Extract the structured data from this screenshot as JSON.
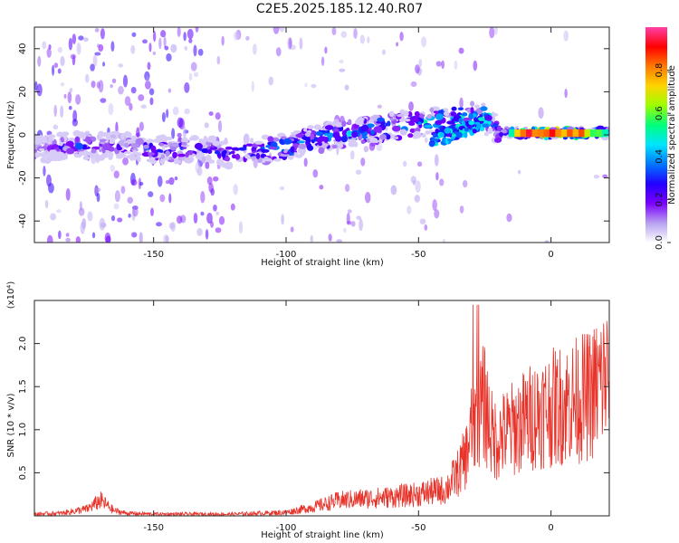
{
  "figure_title": "C2E5.2025.185.12.40.R07",
  "chart_data": [
    {
      "type": "heatmap",
      "title": "",
      "xlabel": "Height of straight line (km)",
      "ylabel": "Frequency (Hz)",
      "xlim": [
        -195,
        22
      ],
      "ylim": [
        -50,
        50
      ],
      "x_ticks": [
        -150,
        -100,
        -50,
        0
      ],
      "y_ticks": [
        -40,
        -20,
        0,
        20,
        40
      ],
      "colorbar": {
        "label": "Normalized spectral amplitude",
        "range": [
          0,
          1
        ],
        "ticks": [
          0.0,
          0.2,
          0.4,
          0.6,
          0.8
        ],
        "colormap": [
          "#ffffff",
          "#b7a0f0",
          "#7b00ff",
          "#2200ff",
          "#0078ff",
          "#00e5ff",
          "#00ff7a",
          "#9cff00",
          "#ffd400",
          "#ff7a00",
          "#ff0000",
          "#ff3fa6"
        ]
      },
      "ridge": {
        "x": [
          -190,
          -180,
          -170,
          -160,
          -150,
          -140,
          -130,
          -120,
          -110,
          -100,
          -90,
          -80,
          -70,
          -60,
          -50,
          -40,
          -30,
          -25,
          -20,
          -10,
          0,
          10,
          20
        ],
        "freq_hz": [
          -6,
          -5,
          -5,
          -5,
          -7,
          -7,
          -7,
          -9,
          -7,
          -6,
          -2,
          0,
          2,
          4,
          5,
          7,
          9,
          10,
          1,
          1,
          1,
          1,
          1
        ],
        "peak_amplitude": [
          0.2,
          0.35,
          0.3,
          0.3,
          0.35,
          0.35,
          0.3,
          0.35,
          0.4,
          0.45,
          0.45,
          0.45,
          0.5,
          0.5,
          0.5,
          0.5,
          0.5,
          0.45,
          0.4,
          0.95,
          0.95,
          0.9,
          0.5
        ]
      }
    },
    {
      "type": "line",
      "title": "",
      "xlabel": "Height of straight line (km)",
      "ylabel": "SNR (10 * v/v)",
      "y_multiplier": "(x10⁴)",
      "xlim": [
        -195,
        22
      ],
      "ylim": [
        0,
        2.5
      ],
      "x_ticks": [
        -150,
        -100,
        -50,
        0
      ],
      "y_ticks": [
        0.5,
        1.0,
        1.5,
        2.0
      ],
      "series": [
        {
          "color": "#e8332a",
          "x": [
            -195,
            -185,
            -175,
            -170,
            -165,
            -160,
            -150,
            -140,
            -130,
            -120,
            -110,
            -100,
            -90,
            -80,
            -70,
            -60,
            -50,
            -45,
            -40,
            -35,
            -32,
            -30,
            -28,
            -25,
            -22,
            -20,
            -15,
            -10,
            -5,
            0,
            5,
            10,
            15,
            20,
            22
          ],
          "values": [
            0.02,
            0.03,
            0.08,
            0.18,
            0.06,
            0.03,
            0.02,
            0.02,
            0.02,
            0.02,
            0.03,
            0.04,
            0.1,
            0.18,
            0.2,
            0.22,
            0.25,
            0.28,
            0.3,
            0.5,
            0.7,
            1.0,
            1.2,
            1.3,
            0.9,
            0.9,
            1.0,
            1.1,
            1.2,
            1.25,
            1.3,
            1.35,
            1.4,
            1.6,
            1.65
          ]
        }
      ]
    }
  ]
}
